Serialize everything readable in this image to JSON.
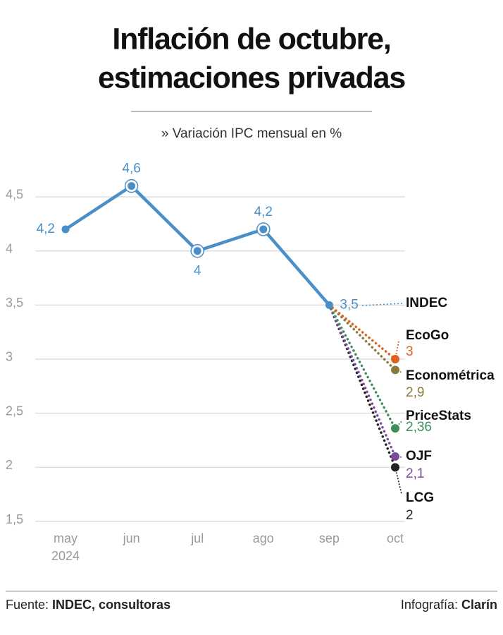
{
  "chart_data": {
    "type": "line",
    "title": [
      "Inflación de octubre,",
      "estimaciones privadas"
    ],
    "subtitle": "» Variación IPC mensual en %",
    "categories": [
      "may",
      "jun",
      "jul",
      "ago",
      "sep",
      "oct"
    ],
    "year": "2024",
    "ylim": [
      1.5,
      4.7
    ],
    "yticks": [
      {
        "value": 1.5,
        "label": "1,5"
      },
      2,
      {
        "value": 2.5,
        "label": "2,5"
      },
      3,
      {
        "value": 3.5,
        "label": "3,5"
      },
      4,
      {
        "value": 4.5,
        "label": "4,5"
      }
    ],
    "grid": true,
    "series": [
      {
        "name": "INDEC",
        "color": "#4a8fc7",
        "values": [
          4.2,
          4.6,
          4,
          4.2,
          3.5,
          null
        ],
        "value_labels": [
          "4,2",
          "4,6",
          "4",
          "4,2",
          "3,5",
          null
        ]
      },
      {
        "name": "EcoGo",
        "color": "#e0601e",
        "values": [
          null,
          null,
          null,
          null,
          3.5,
          3
        ],
        "value_labels": [
          null,
          null,
          null,
          null,
          null,
          "3"
        ]
      },
      {
        "name": "Econométrica",
        "color": "#8c7a3c",
        "values": [
          null,
          null,
          null,
          null,
          3.5,
          2.9
        ],
        "value_labels": [
          null,
          null,
          null,
          null,
          null,
          "2,9"
        ]
      },
      {
        "name": "PriceStats",
        "color": "#3f8c5c",
        "values": [
          null,
          null,
          null,
          null,
          3.5,
          2.36
        ],
        "value_labels": [
          null,
          null,
          null,
          null,
          null,
          "2,36"
        ]
      },
      {
        "name": "OJF",
        "color": "#7a4a9c",
        "values": [
          null,
          null,
          null,
          null,
          3.5,
          2.1
        ],
        "value_labels": [
          null,
          null,
          null,
          null,
          null,
          "2,1"
        ]
      },
      {
        "name": "LCG",
        "color": "#222222",
        "values": [
          null,
          null,
          null,
          null,
          3.5,
          2
        ],
        "value_labels": [
          null,
          null,
          null,
          null,
          null,
          "2"
        ]
      }
    ]
  },
  "footer": {
    "source_label": "Fuente:",
    "source": "INDEC, consultoras",
    "credit_label": "Infografía:",
    "credit": "Clarín"
  }
}
